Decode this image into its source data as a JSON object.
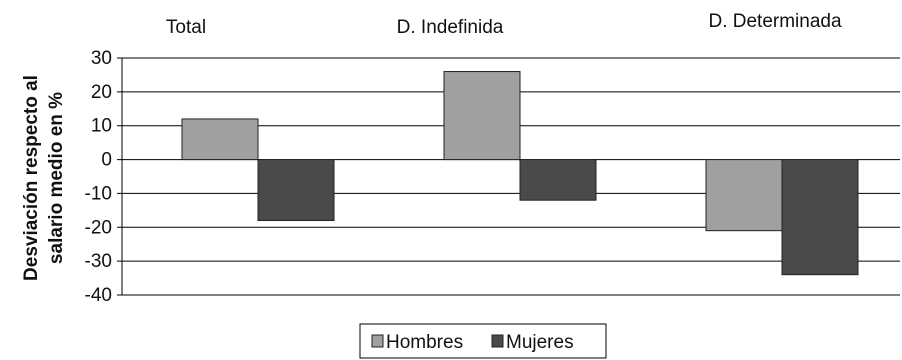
{
  "chart_data": {
    "type": "bar",
    "categories": [
      "Total",
      "D. Indefinida",
      "D. Determinada"
    ],
    "series": [
      {
        "name": "Hombres",
        "values": [
          12,
          26,
          -21
        ],
        "color": "#a0a0a0"
      },
      {
        "name": "Mujeres",
        "values": [
          -18,
          -12,
          -34
        ],
        "color": "#4a4a4a"
      }
    ],
    "ylabel_lines": [
      "Desviación respecto al",
      "salario medio en %"
    ],
    "ylim": [
      -40,
      30
    ],
    "yticks": [
      30,
      20,
      10,
      0,
      -10,
      -20,
      -30,
      -40
    ],
    "grid": true,
    "legend_position": "bottom-center"
  }
}
